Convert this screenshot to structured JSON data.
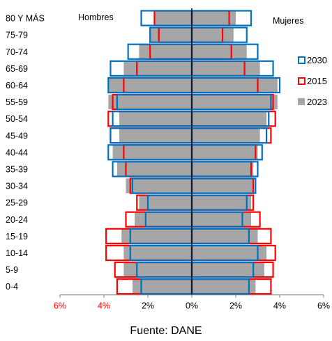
{
  "chart_data": {
    "type": "bar",
    "subtype": "population-pyramid",
    "side_labels": {
      "left": "Hombres",
      "right": "Mujeres"
    },
    "categories": [
      "0-4",
      "5-9",
      "10-14",
      "15-19",
      "20-24",
      "25-29",
      "30-34",
      "35-39",
      "40-44",
      "45-49",
      "50-54",
      "55-59",
      "60-64",
      "65-69",
      "70-74",
      "75-79",
      "80 Y MÁS"
    ],
    "unit": "%",
    "xlim": [
      -6,
      6
    ],
    "xticks": [
      {
        "value": -6,
        "label": "6%",
        "color": "#ff0000"
      },
      {
        "value": -4,
        "label": "4%",
        "color": "#ff0000"
      },
      {
        "value": -2,
        "label": "2%",
        "color": "#000000"
      },
      {
        "value": 0,
        "label": "0%",
        "color": "#000000"
      },
      {
        "value": 2,
        "label": "2%",
        "color": "#000000"
      },
      {
        "value": 4,
        "label": "4%",
        "color": "#000000"
      },
      {
        "value": 6,
        "label": "6%",
        "color": "#000000"
      }
    ],
    "grid": false,
    "legend_position": "right",
    "series": [
      {
        "name": "2030",
        "style": "outline",
        "color": "#0070c0",
        "men": [
          2.3,
          2.5,
          2.8,
          2.8,
          2.1,
          2.0,
          2.7,
          3.6,
          3.8,
          3.7,
          3.6,
          3.4,
          3.8,
          3.7,
          2.9,
          1.9,
          2.3
        ],
        "women": [
          2.6,
          2.8,
          3.0,
          2.6,
          2.3,
          2.5,
          2.9,
          3.0,
          3.2,
          3.4,
          3.5,
          3.6,
          4.0,
          3.7,
          3.0,
          2.5,
          2.7
        ]
      },
      {
        "name": "2015",
        "style": "outline",
        "color": "#ff0000",
        "men": [
          3.4,
          3.5,
          3.9,
          3.9,
          3.0,
          2.5,
          2.8,
          3.0,
          3.1,
          3.7,
          3.8,
          3.6,
          3.1,
          2.5,
          1.9,
          1.5,
          1.7
        ],
        "women": [
          3.6,
          3.7,
          3.8,
          3.6,
          3.1,
          2.8,
          2.8,
          2.7,
          2.9,
          3.6,
          3.8,
          3.7,
          3.0,
          2.4,
          1.8,
          1.4,
          1.7
        ]
      },
      {
        "name": "2023",
        "style": "filled",
        "color": "#a6a6a6",
        "men": [
          2.7,
          3.1,
          3.1,
          3.2,
          2.6,
          2.4,
          3.0,
          3.4,
          3.6,
          3.3,
          3.3,
          3.8,
          3.8,
          3.1,
          2.4,
          1.9,
          1.7
        ],
        "women": [
          2.9,
          3.3,
          3.4,
          3.0,
          2.7,
          2.7,
          2.8,
          2.8,
          3.0,
          3.1,
          3.4,
          3.9,
          3.9,
          3.1,
          2.5,
          1.9,
          2.0
        ]
      }
    ]
  },
  "source": "Fuente: DANE"
}
